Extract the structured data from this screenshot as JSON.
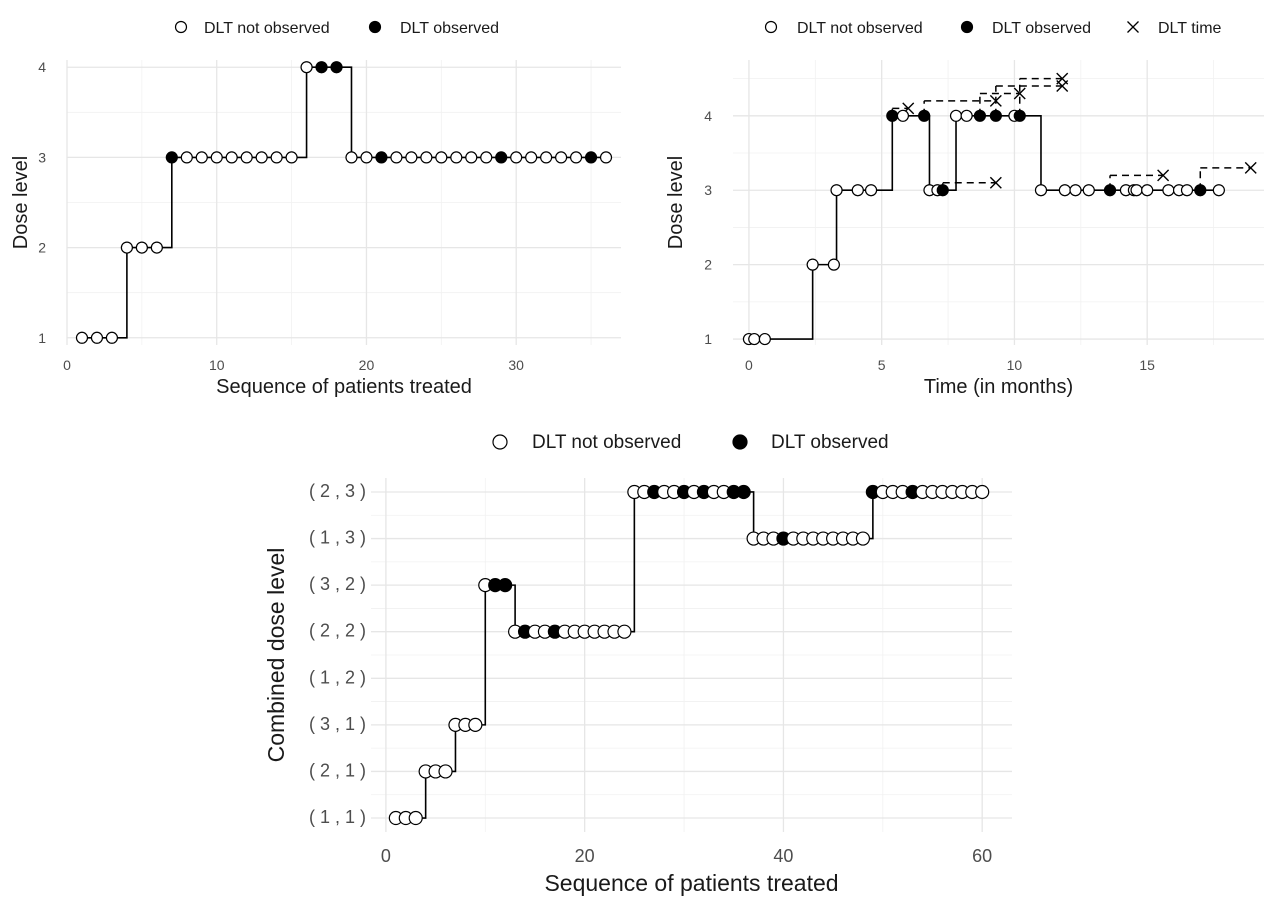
{
  "chart_data": [
    {
      "type": "scatter",
      "xlabel": "Sequence of patients treated",
      "ylabel": "Dose level",
      "xlim": [
        0,
        37
      ],
      "ylim": [
        0.92,
        4.08
      ],
      "x_ticks": [
        0,
        10,
        20,
        30
      ],
      "y_ticks": [
        1,
        2,
        3,
        4
      ],
      "y_tick_labels": [
        "1",
        "2",
        "3",
        "4"
      ],
      "grid": true,
      "legend_position": "top",
      "legend": [
        "DLT not observed",
        "DLT observed"
      ],
      "series": [
        {
          "x": [
            1,
            2,
            3,
            4,
            5,
            6,
            7,
            8,
            9,
            10,
            11,
            12,
            13,
            14,
            15,
            16,
            17,
            18,
            19,
            20,
            21,
            22,
            23,
            24,
            25,
            26,
            27,
            28,
            29,
            30,
            31,
            32,
            33,
            34,
            35,
            36
          ],
          "dose": [
            1,
            1,
            1,
            2,
            2,
            2,
            3,
            3,
            3,
            3,
            3,
            3,
            3,
            3,
            3,
            4,
            4,
            4,
            3,
            3,
            3,
            3,
            3,
            3,
            3,
            3,
            3,
            3,
            3,
            3,
            3,
            3,
            3,
            3,
            3,
            3
          ],
          "dlt": [
            0,
            0,
            0,
            0,
            0,
            0,
            1,
            0,
            0,
            0,
            0,
            0,
            0,
            0,
            0,
            0,
            1,
            1,
            0,
            0,
            1,
            0,
            0,
            0,
            0,
            0,
            0,
            0,
            1,
            0,
            0,
            0,
            0,
            0,
            1,
            0
          ]
        }
      ]
    },
    {
      "type": "scatter",
      "xlabel": "Time (in months)",
      "ylabel": "Dose level",
      "xlim": [
        -0.6,
        19.4
      ],
      "ylim": [
        0.92,
        4.75
      ],
      "x_ticks": [
        0,
        5,
        10,
        15
      ],
      "y_ticks": [
        1,
        2,
        3,
        4
      ],
      "y_tick_labels": [
        "1",
        "2",
        "3",
        "4"
      ],
      "grid": true,
      "legend_position": "top",
      "legend": [
        "DLT not observed",
        "DLT observed",
        "DLT time"
      ],
      "series": [
        {
          "x": [
            0,
            0.2,
            0.6,
            2.4,
            3.2,
            3.3,
            4.1,
            4.6,
            5.4,
            5.8,
            6.6,
            6.8,
            7.1,
            7.3,
            7.8,
            8.2,
            8.7,
            9.3,
            10.0,
            10.2,
            11.0,
            11.9,
            12.3,
            12.8,
            13.6,
            14.2,
            14.5,
            14.6,
            15.0,
            15.8,
            16.2,
            16.5,
            17.0,
            17.7
          ],
          "dose": [
            1,
            1,
            1,
            2,
            2,
            3,
            3,
            3,
            4,
            4,
            4,
            3,
            3,
            3,
            4,
            4,
            4,
            4,
            4,
            4,
            3,
            3,
            3,
            3,
            3,
            3,
            3,
            3,
            3,
            3,
            3,
            3,
            3,
            3
          ],
          "dlt": [
            0,
            0,
            0,
            0,
            0,
            0,
            0,
            0,
            1,
            0,
            1,
            0,
            0,
            1,
            0,
            0,
            1,
            1,
            0,
            1,
            0,
            0,
            0,
            0,
            1,
            0,
            0,
            0,
            0,
            0,
            0,
            0,
            1,
            0
          ]
        }
      ],
      "dlt_time_segments": [
        {
          "x_start": 5.4,
          "y_start": 4.0,
          "x_end": 6.0,
          "y_end": 4.1
        },
        {
          "x_start": 6.6,
          "y_start": 4.0,
          "x_end": 9.3,
          "y_end": 4.2
        },
        {
          "x_start": 7.3,
          "y_start": 3.0,
          "x_end": 9.3,
          "y_end": 3.1
        },
        {
          "x_start": 8.7,
          "y_start": 4.0,
          "x_end": 10.2,
          "y_end": 4.3
        },
        {
          "x_start": 9.3,
          "y_start": 4.0,
          "x_end": 11.8,
          "y_end": 4.4
        },
        {
          "x_start": 10.2,
          "y_start": 4.0,
          "x_end": 11.8,
          "y_end": 4.5
        },
        {
          "x_start": 13.6,
          "y_start": 3.0,
          "x_end": 15.6,
          "y_end": 3.2
        },
        {
          "x_start": 17.0,
          "y_start": 3.0,
          "x_end": 18.9,
          "y_end": 3.3
        }
      ]
    },
    {
      "type": "scatter",
      "xlabel": "Sequence of patients treated",
      "ylabel": "Combined dose level",
      "xlim": [
        -1.5,
        63
      ],
      "ylim": [
        0.7,
        8.3
      ],
      "x_ticks": [
        0,
        20,
        40,
        60
      ],
      "y_ticks": [
        1,
        2,
        3,
        4,
        5,
        6,
        7,
        8
      ],
      "y_tick_labels": [
        "( 1 , 1 )",
        "( 2 , 1 )",
        "( 3 , 1 )",
        "( 1 , 2 )",
        "( 2 , 2 )",
        "( 3 , 2 )",
        "( 1 , 3 )",
        "( 2 , 3 )"
      ],
      "grid": true,
      "legend_position": "top",
      "legend": [
        "DLT not observed",
        "DLT observed"
      ],
      "series": [
        {
          "x": [
            1,
            2,
            3,
            4,
            5,
            6,
            7,
            8,
            9,
            10,
            11,
            12,
            13,
            14,
            15,
            16,
            17,
            18,
            19,
            20,
            21,
            22,
            23,
            24,
            25,
            26,
            27,
            28,
            29,
            30,
            31,
            32,
            33,
            34,
            35,
            36,
            37,
            38,
            39,
            40,
            41,
            42,
            43,
            44,
            45,
            46,
            47,
            48,
            49,
            50,
            51,
            52,
            53,
            54,
            55,
            56,
            57,
            58,
            59,
            60
          ],
          "dose": [
            1,
            1,
            1,
            2,
            2,
            2,
            3,
            3,
            3,
            6,
            6,
            6,
            5,
            5,
            5,
            5,
            5,
            5,
            5,
            5,
            5,
            5,
            5,
            5,
            8,
            8,
            8,
            8,
            8,
            8,
            8,
            8,
            8,
            8,
            8,
            8,
            7,
            7,
            7,
            7,
            7,
            7,
            7,
            7,
            7,
            7,
            7,
            7,
            8,
            8,
            8,
            8,
            8,
            8,
            8,
            8,
            8,
            8,
            8,
            8
          ],
          "dlt": [
            0,
            0,
            0,
            0,
            0,
            0,
            0,
            0,
            0,
            0,
            1,
            1,
            0,
            1,
            0,
            0,
            1,
            0,
            0,
            0,
            0,
            0,
            0,
            0,
            0,
            0,
            1,
            0,
            0,
            1,
            0,
            1,
            0,
            0,
            1,
            1,
            0,
            0,
            0,
            1,
            0,
            0,
            0,
            0,
            0,
            0,
            0,
            0,
            1,
            0,
            0,
            0,
            1,
            0,
            0,
            0,
            0,
            0,
            0,
            0
          ]
        }
      ]
    }
  ]
}
